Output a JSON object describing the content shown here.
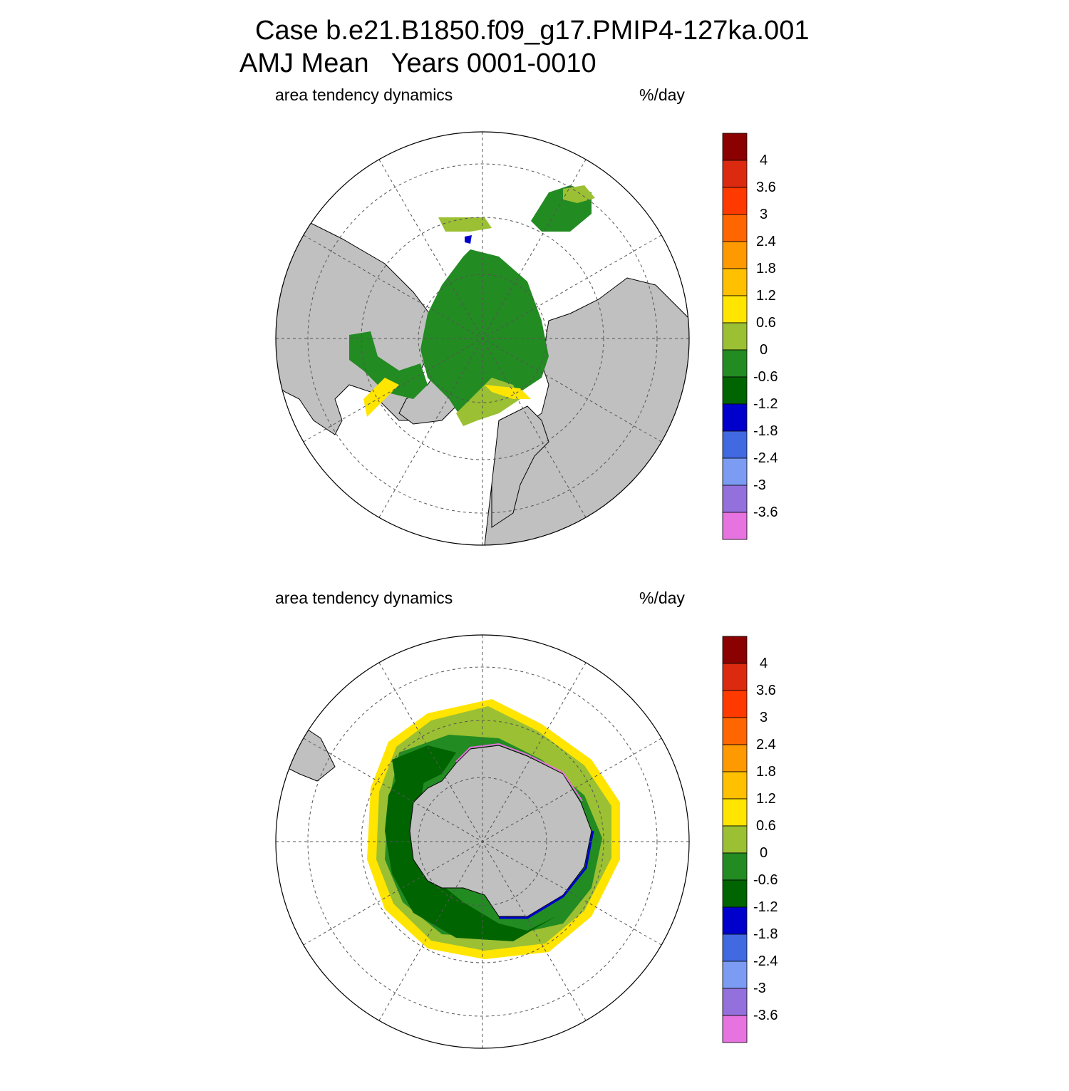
{
  "title": {
    "line1": "Case b.e21.B1850.f09_g17.PMIP4-127ka.001",
    "line2": "AMJ Mean   Years 0001-0010"
  },
  "panels": [
    {
      "id": "north",
      "variable": "area tendency dynamics",
      "units": "%/day"
    },
    {
      "id": "south",
      "variable": "area tendency dynamics",
      "units": "%/day"
    }
  ],
  "colorbar": {
    "labels": [
      "4",
      "3.6",
      "3",
      "2.4",
      "1.8",
      "1.2",
      "0.6",
      "0",
      "-0.6",
      "-1.2",
      "-1.8",
      "-2.4",
      "-3",
      "-3.6"
    ],
    "colors": [
      "#8b0000",
      "#dc2a10",
      "#ff3a00",
      "#ff6600",
      "#ff9900",
      "#ffc000",
      "#ffe500",
      "#9bc033",
      "#228b22",
      "#006400",
      "#0000cd",
      "#4169e1",
      "#7b9cf2",
      "#9370db",
      "#e673e0"
    ]
  },
  "colors": {
    "land": "#c0c0c0",
    "ocean": "#ffffff"
  }
}
